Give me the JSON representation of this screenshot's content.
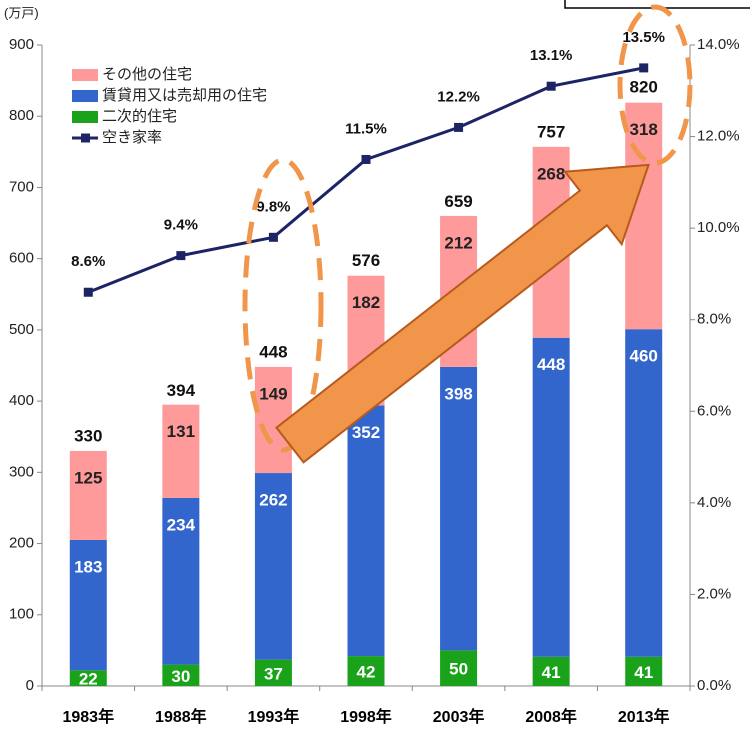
{
  "chart_data": {
    "type": "bar",
    "stacked": true,
    "y_unit": "(万戸)",
    "categories": [
      "1983年",
      "1988年",
      "1993年",
      "1998年",
      "2003年",
      "2008年",
      "2013年"
    ],
    "series": [
      {
        "name": "二次的住宅",
        "color": "#1aa31a",
        "values": [
          22,
          30,
          37,
          42,
          50,
          41,
          41
        ]
      },
      {
        "name": "賃貸用又は売却用の住宅",
        "color": "#3366cc",
        "values": [
          183,
          234,
          262,
          352,
          398,
          448,
          460
        ]
      },
      {
        "name": "その他の住宅",
        "color": "#ff9a9a",
        "values": [
          125,
          131,
          149,
          182,
          212,
          268,
          318
        ]
      },
      {
        "name": "空き家率",
        "type": "line",
        "axis": "y2",
        "color": "#1c2466",
        "values": [
          8.6,
          9.4,
          9.8,
          11.5,
          12.2,
          13.1,
          13.5
        ],
        "value_labels": [
          "8.6%",
          "9.4%",
          "9.8%",
          "11.5%",
          "12.2%",
          "13.1%",
          "13.5%"
        ]
      }
    ],
    "totals": [
      330,
      394,
      448,
      576,
      659,
      757,
      820
    ],
    "ylim": [
      0,
      900
    ],
    "yticks": [
      0,
      100,
      200,
      300,
      400,
      500,
      600,
      700,
      800,
      900
    ],
    "y2lim": [
      0,
      14
    ],
    "y2ticks": [
      {
        "value": 0,
        "label": "0.0%"
      },
      {
        "value": 2,
        "label": "2.0%"
      },
      {
        "value": 4,
        "label": "4.0%"
      },
      {
        "value": 6,
        "label": "6.0%"
      },
      {
        "value": 8,
        "label": "8.0%"
      },
      {
        "value": 10,
        "label": "10.0%"
      },
      {
        "value": 12,
        "label": "12.0%"
      },
      {
        "value": 14,
        "label": "14.0%"
      }
    ],
    "legend": "upper left"
  }
}
